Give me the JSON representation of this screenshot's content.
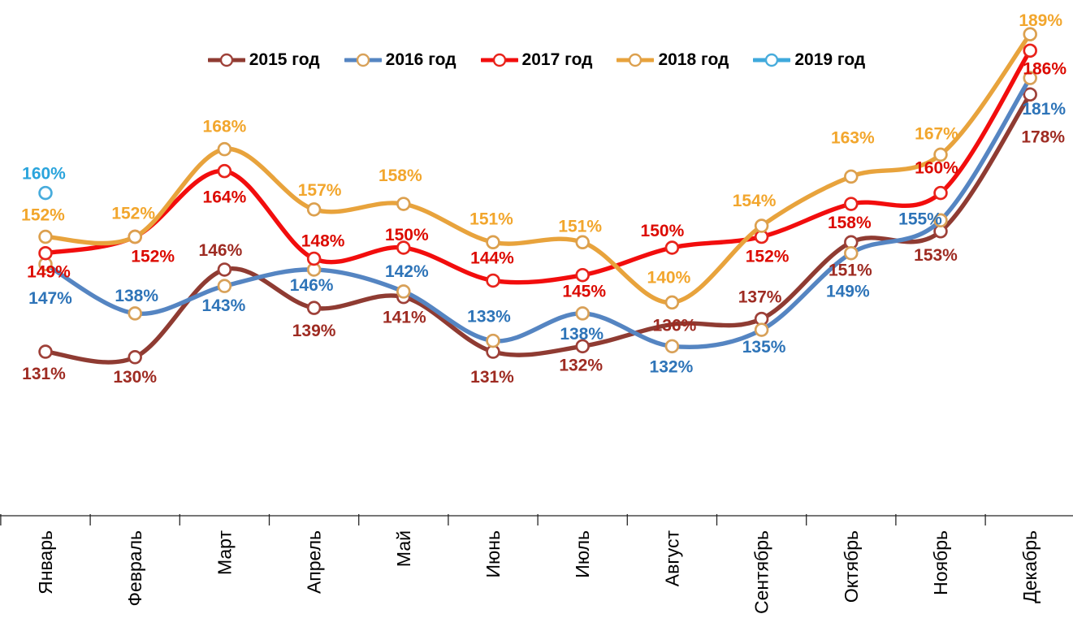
{
  "chart_data": {
    "type": "line",
    "title": "",
    "categories": [
      "Январь",
      "Февраль",
      "Март",
      "Апрель",
      "Май",
      "Июнь",
      "Июль",
      "Август",
      "Сентябрь",
      "Октябрь",
      "Ноябрь",
      "Декабрь"
    ],
    "grid": false,
    "legend_position": "top",
    "ylim": [
      100,
      195
    ],
    "series": [
      {
        "name": "2015 год",
        "color": "#8F3B32",
        "label_color": "#9E2B22",
        "marker_ring": "#9E4038",
        "values": [
          131,
          130,
          146,
          139,
          141,
          131,
          132,
          136,
          137,
          151,
          153,
          178
        ],
        "labels": [
          "131%",
          "130%",
          "146%",
          "139%",
          "141%",
          "131%",
          "132%",
          "136%",
          "137%",
          "151%",
          "153%",
          "178%"
        ],
        "label_offsets": [
          [
            -2,
            27
          ],
          [
            0,
            24
          ],
          [
            -5,
            -24
          ],
          [
            0,
            28
          ],
          [
            1,
            25
          ],
          [
            -1,
            31
          ],
          [
            -2,
            23
          ],
          [
            3,
            1
          ],
          [
            -2,
            -27
          ],
          [
            -1,
            34
          ],
          [
            -6,
            29
          ],
          [
            16,
            52
          ]
        ],
        "hidden_markers": [
          7
        ]
      },
      {
        "name": "2016 год",
        "color": "#5585C2",
        "label_color": "#2E74B8",
        "marker_ring": "#D8A159",
        "values": [
          147,
          138,
          143,
          146,
          142,
          133,
          138,
          132,
          135,
          149,
          155,
          181
        ],
        "labels": [
          "147%",
          "138%",
          "143%",
          "146%",
          "142%",
          "133%",
          "138%",
          "132%",
          "135%",
          "149%",
          "155%",
          "181%"
        ],
        "label_offsets": [
          [
            6,
            42
          ],
          [
            2,
            -22
          ],
          [
            -1,
            24
          ],
          [
            -3,
            19
          ],
          [
            4,
            -25
          ],
          [
            -5,
            -30
          ],
          [
            -1,
            25
          ],
          [
            -1,
            25
          ],
          [
            3,
            21
          ],
          [
            -4,
            47
          ],
          [
            -25,
            -2
          ],
          [
            17,
            38
          ]
        ],
        "hidden_markers": []
      },
      {
        "name": "2017 год",
        "color": "#F20D0D",
        "label_color": "#DC0A00",
        "marker_ring": "#E8231B",
        "values": [
          149,
          152,
          164,
          148,
          150,
          144,
          145,
          150,
          152,
          158,
          160,
          186
        ],
        "labels": [
          "149%",
          "152%",
          "164%",
          "148%",
          "150%",
          "144%",
          "145%",
          "150%",
          "152%",
          "158%",
          "160%",
          "186%"
        ],
        "label_offsets": [
          [
            4,
            23
          ],
          [
            22,
            24
          ],
          [
            0,
            32
          ],
          [
            11,
            -22
          ],
          [
            4,
            -16
          ],
          [
            -1,
            -28
          ],
          [
            2,
            20
          ],
          [
            -12,
            -21
          ],
          [
            7,
            24
          ],
          [
            -2,
            23
          ],
          [
            -5,
            -31
          ],
          [
            18,
            22
          ]
        ],
        "hidden_markers": []
      },
      {
        "name": "2018 год",
        "color": "#E8A33C",
        "label_color": "#F2A62D",
        "marker_ring": "#DCA04E",
        "values": [
          152,
          152,
          168,
          157,
          158,
          151,
          151,
          140,
          154,
          163,
          167,
          189
        ],
        "labels": [
          "152%",
          "152%",
          "168%",
          "157%",
          "158%",
          "151%",
          "151%",
          "140%",
          "154%",
          "163%",
          "167%",
          "189%"
        ],
        "label_offsets": [
          [
            -3,
            -27
          ],
          [
            -2,
            -29
          ],
          [
            0,
            -28
          ],
          [
            7,
            -24
          ],
          [
            -4,
            -35
          ],
          [
            -2,
            -29
          ],
          [
            -3,
            -20
          ],
          [
            -4,
            -31
          ],
          [
            -9,
            -31
          ],
          [
            2,
            -48
          ],
          [
            -5,
            -26
          ],
          [
            13,
            -17
          ]
        ],
        "hidden_markers": []
      },
      {
        "name": "2019 год",
        "color": "#3FA9DC",
        "label_color": "#2AA4DC",
        "marker_ring": "#47ACDC",
        "values": [
          160,
          null,
          null,
          null,
          null,
          null,
          null,
          null,
          null,
          null,
          null,
          null
        ],
        "labels": [
          "160%"
        ],
        "label_offsets": [
          [
            -2,
            -24
          ]
        ],
        "hidden_markers": []
      }
    ],
    "axis": {
      "line_color": "#262626",
      "label_color": "#000000"
    }
  }
}
